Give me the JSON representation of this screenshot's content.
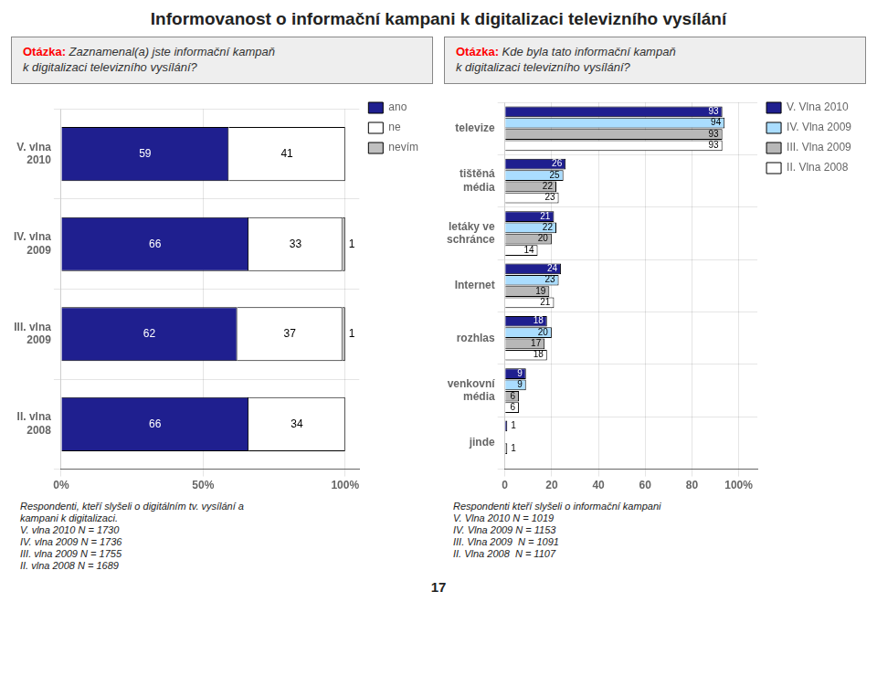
{
  "chart_data": [
    {
      "type": "bar",
      "title": "Informovanost o informační kampani k digitalizaci televizního vysílání",
      "subtitle": "Otázka: Zaznamenal(a) jste informační kampaň\nk digitalizaci televizního vysílání?",
      "orientation": "horizontal",
      "stacked": true,
      "categories": [
        "V. vlna\n2010",
        "IV. vlna\n2009",
        "III. vlna\n2009",
        "II. vlna\n2008"
      ],
      "series": [
        {
          "name": "ano",
          "color": "#1f1f8f",
          "values": [
            59,
            66,
            62,
            66
          ]
        },
        {
          "name": "ne",
          "color": "#ffffff",
          "values": [
            41,
            33,
            37,
            34
          ]
        },
        {
          "name": "nevím",
          "color": "#c0c0c0",
          "values": [
            0,
            1,
            1,
            0
          ],
          "value_labels": [
            null,
            "1",
            "1",
            null
          ]
        }
      ],
      "xlim": [
        0,
        105
      ],
      "xticks": [
        {
          "value": 0,
          "label": "0%"
        },
        {
          "value": 50,
          "label": "50%"
        },
        {
          "value": 100,
          "label": "100%"
        }
      ],
      "grid": true,
      "legend": "right",
      "data_labels": true,
      "annotations": [
        "Respondenti, kteří slyšeli o digitálním tv. vysílání a\nkampani k digitalizaci.\nV. vlna 2010 N = 1730\nIV. vlna 2009 N = 1736\nIII. vlna 2009 N = 1755\nII. vlna 2008 N = 1689"
      ]
    },
    {
      "type": "bar",
      "subtitle": "Otázka: Kde byla tato informační kampaň\nk digitalizaci televizního vysílání?",
      "orientation": "horizontal",
      "stacked": false,
      "categories": [
        "televize",
        "tištěná\nmédia",
        "letáky ve\nschránce",
        "Internet",
        "rozhlas",
        "venkovní\nmédia",
        "jinde"
      ],
      "series": [
        {
          "name": "V. Vlna 2010",
          "color": "#1f1f8f",
          "values": [
            93,
            26,
            21,
            24,
            18,
            9,
            1
          ]
        },
        {
          "name": "IV. Vlna 2009",
          "color": "#aaddff",
          "values": [
            94,
            25,
            22,
            23,
            20,
            9,
            0
          ],
          "value_labels": [
            "94",
            "25",
            "22",
            "23",
            "20",
            "9",
            null
          ]
        },
        {
          "name": "III. Vlna 2009",
          "color": "#b8b8b8",
          "values": [
            93,
            22,
            20,
            19,
            17,
            6,
            1
          ]
        },
        {
          "name": "II. Vlna 2008",
          "color": "#ffffff",
          "values": [
            93,
            23,
            14,
            21,
            18,
            6,
            0
          ],
          "value_labels": [
            "93",
            "23",
            "14",
            "21",
            "18",
            "6",
            null
          ]
        }
      ],
      "xlim": [
        0,
        108
      ],
      "xticks": [
        0,
        20,
        40,
        60,
        80,
        {
          "value": 100,
          "label": "100%"
        }
      ],
      "grid": true,
      "legend": "right",
      "data_labels": true,
      "annotations": [
        "Respondenti kteří slyšeli o informační kampani\nV. Vlna 2010 N = 1019\nIV. Vlna 2009 N = 1153\nIII. Vlna 2009  N = 1091\nII. Vlna 2008  N = 1107",
        "17"
      ]
    }
  ]
}
